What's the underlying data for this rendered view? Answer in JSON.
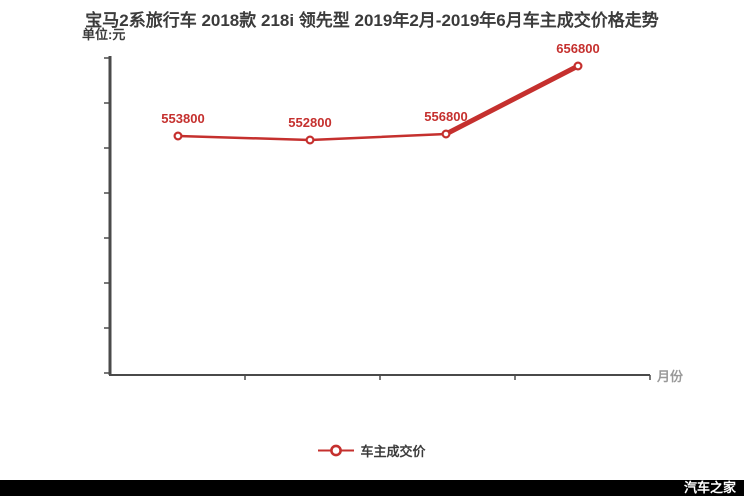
{
  "colors": {
    "accent_red": "#c5302e",
    "text_dark": "#3b3b3b",
    "axis": "#4a4a4a",
    "muted": "#999999",
    "footer_bg": "#000000",
    "footer_text": "#ffffff"
  },
  "chart_data": {
    "type": "line",
    "title": "宝马2系旅行车 2018款 218i 领先型 2019年2月-2019年6月车主成交价格走势",
    "unit_label": "单位:元",
    "x_axis_end_label": "月份",
    "grid": false,
    "legend_position": "bottom-center",
    "x_tick_labels_visible": false,
    "y_tick_labels_visible": false,
    "legend": [
      {
        "name": "车主成交价",
        "color": "#c5302e"
      }
    ],
    "series": [
      {
        "name": "车主成交价",
        "values": [
          553800,
          552800,
          556800,
          656800
        ],
        "labels": [
          "553800",
          "552800",
          "556800",
          "656800"
        ]
      }
    ]
  },
  "footer": {
    "watermark": "汽车之家"
  }
}
